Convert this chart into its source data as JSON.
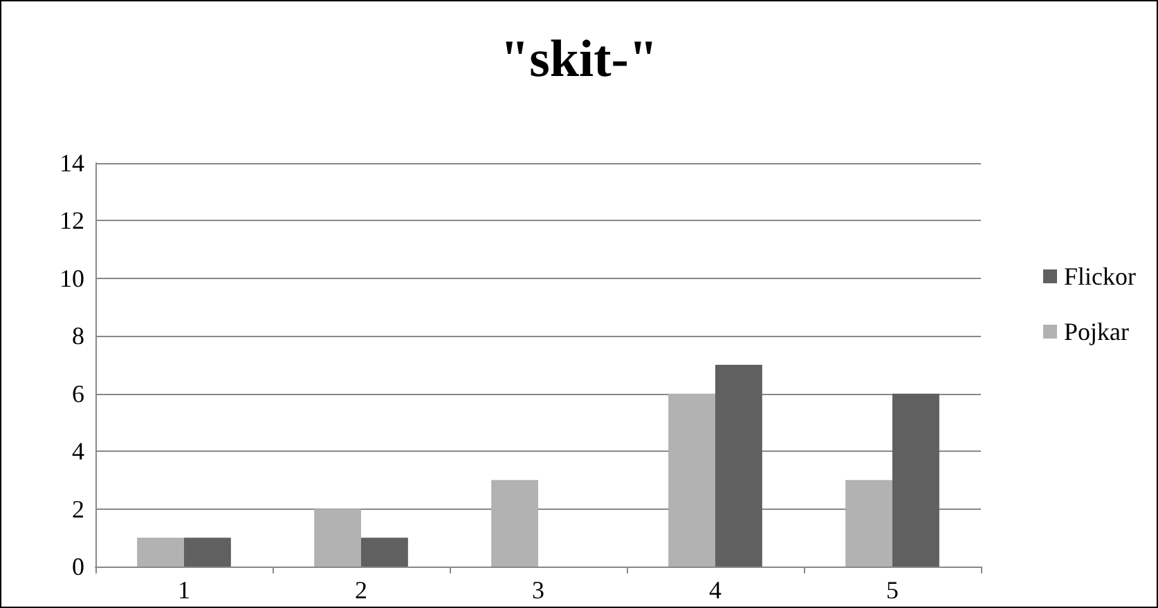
{
  "chart_data": {
    "type": "bar",
    "title": "\"skit-\"",
    "categories": [
      "1",
      "2",
      "3",
      "4",
      "5"
    ],
    "series": [
      {
        "name": "Pojkar",
        "color": "#b2b2b2",
        "values": [
          1,
          2,
          3,
          6,
          3
        ]
      },
      {
        "name": "Flickor",
        "color": "#606060",
        "values": [
          1,
          1,
          0,
          7,
          6
        ]
      }
    ],
    "ylim": [
      0,
      14
    ],
    "yticks": [
      0,
      2,
      4,
      6,
      8,
      10,
      12,
      14
    ],
    "grid": "y",
    "legend": "right"
  }
}
